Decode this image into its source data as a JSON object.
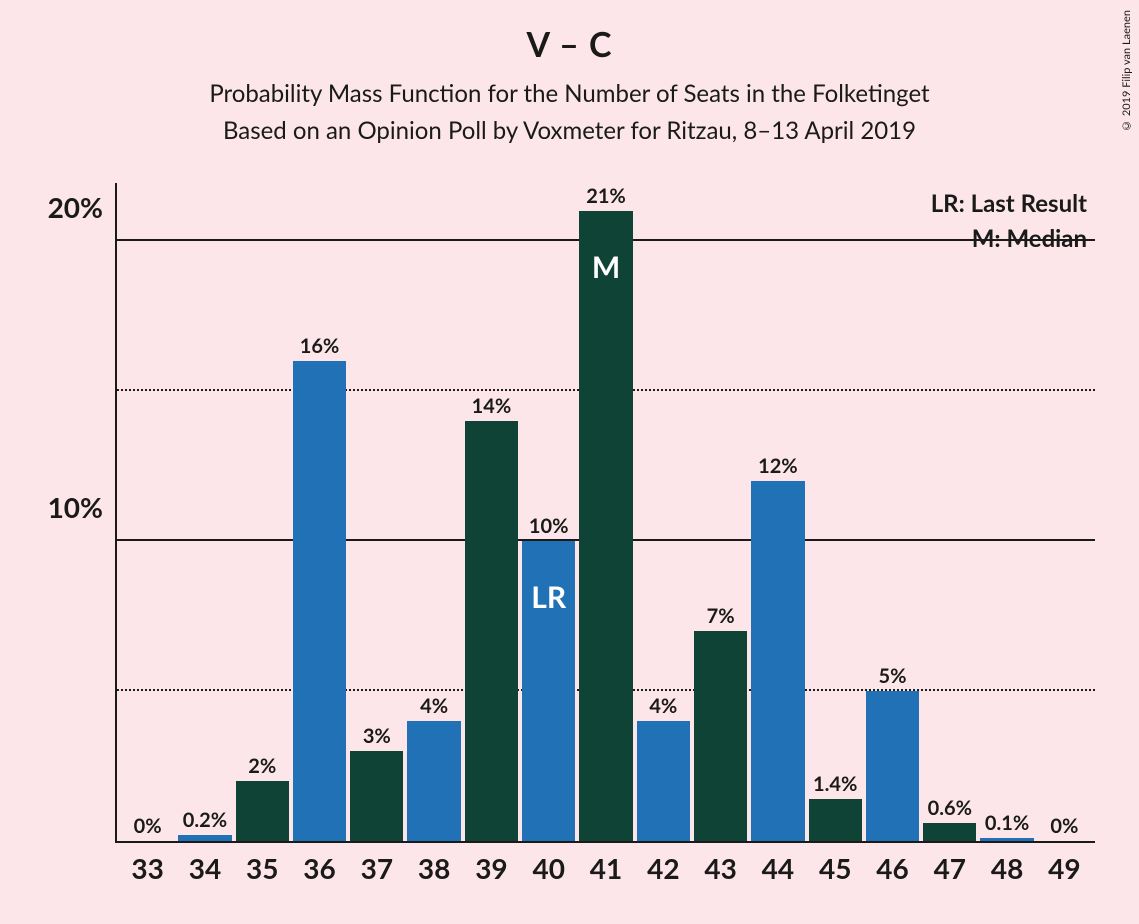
{
  "title": "V – C",
  "subtitle1": "Probability Mass Function for the Number of Seats in the Folketinget",
  "subtitle2": "Based on an Opinion Poll by Voxmeter for Ritzau, 8–13 April 2019",
  "copyright": "© 2019 Filip van Laenen",
  "legend": {
    "lr": "LR: Last Result",
    "m": "M: Median"
  },
  "chart": {
    "type": "bar",
    "background_color": "#fce6e9",
    "axis_color": "#1a1a1a",
    "text_color": "#1a1a1a",
    "title_fontsize": 34,
    "subtitle_fontsize": 24,
    "axis_label_fontsize": 28,
    "bar_label_fontsize": 20,
    "inner_label_fontsize": 30,
    "inner_label_color": "#ffffff",
    "ylim": [
      0,
      22
    ],
    "y_ticks_major": [
      10,
      20
    ],
    "y_ticks_minor": [
      5,
      15
    ],
    "y_tick_labels": {
      "10": "10%",
      "20": "20%"
    },
    "grid_solid_color": "#1a1a1a",
    "grid_dotted_color": "#1a1a1a",
    "colors": {
      "blue": "#2071b5",
      "green": "#0f4336"
    },
    "categories": [
      "33",
      "34",
      "35",
      "36",
      "37",
      "38",
      "39",
      "40",
      "41",
      "42",
      "43",
      "44",
      "45",
      "46",
      "47",
      "48",
      "49"
    ],
    "bars": [
      {
        "x": "33",
        "value": 0,
        "label": "0%",
        "color": "green",
        "inner": null
      },
      {
        "x": "34",
        "value": 0.2,
        "label": "0.2%",
        "color": "blue",
        "inner": null
      },
      {
        "x": "35",
        "value": 2,
        "label": "2%",
        "color": "green",
        "inner": null
      },
      {
        "x": "36",
        "value": 16,
        "label": "16%",
        "color": "blue",
        "inner": null
      },
      {
        "x": "37",
        "value": 3,
        "label": "3%",
        "color": "green",
        "inner": null
      },
      {
        "x": "38",
        "value": 4,
        "label": "4%",
        "color": "blue",
        "inner": null
      },
      {
        "x": "39",
        "value": 14,
        "label": "14%",
        "color": "green",
        "inner": null
      },
      {
        "x": "40",
        "value": 10,
        "label": "10%",
        "color": "blue",
        "inner": "LR"
      },
      {
        "x": "41",
        "value": 21,
        "label": "21%",
        "color": "green",
        "inner": "M"
      },
      {
        "x": "42",
        "value": 4,
        "label": "4%",
        "color": "blue",
        "inner": null
      },
      {
        "x": "43",
        "value": 7,
        "label": "7%",
        "color": "green",
        "inner": null
      },
      {
        "x": "44",
        "value": 12,
        "label": "12%",
        "color": "blue",
        "inner": null
      },
      {
        "x": "45",
        "value": 1.4,
        "label": "1.4%",
        "color": "green",
        "inner": null
      },
      {
        "x": "46",
        "value": 5,
        "label": "5%",
        "color": "blue",
        "inner": null
      },
      {
        "x": "47",
        "value": 0.6,
        "label": "0.6%",
        "color": "green",
        "inner": null
      },
      {
        "x": "48",
        "value": 0.1,
        "label": "0.1%",
        "color": "blue",
        "inner": null
      },
      {
        "x": "49",
        "value": 0,
        "label": "0%",
        "color": "green",
        "inner": null
      }
    ]
  }
}
